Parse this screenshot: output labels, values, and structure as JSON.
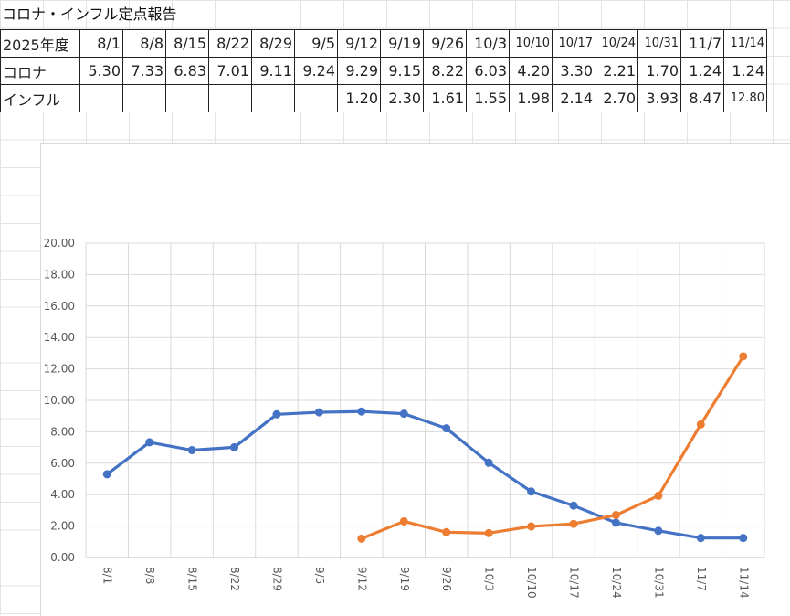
{
  "sheet": {
    "title": "コロナ・インフル定点報告"
  },
  "table": {
    "header_label": "2025年度",
    "dates": [
      "8/1",
      "8/8",
      "8/15",
      "8/22",
      "8/29",
      "9/5",
      "9/12",
      "9/19",
      "9/26",
      "10/3",
      "10/10",
      "10/17",
      "10/24",
      "10/31",
      "11/7",
      "11/14"
    ],
    "rows": [
      {
        "label": "コロナ",
        "values": [
          "5.30",
          "7.33",
          "6.83",
          "7.01",
          "9.11",
          "9.24",
          "9.29",
          "9.15",
          "8.22",
          "6.03",
          "4.20",
          "3.30",
          "2.21",
          "1.70",
          "1.24",
          "1.24"
        ]
      },
      {
        "label": "インフル",
        "values": [
          "",
          "",
          "",
          "",
          "",
          "",
          "1.20",
          "2.30",
          "1.61",
          "1.55",
          "1.98",
          "2.14",
          "2.70",
          "3.93",
          "8.47",
          "12.80"
        ]
      }
    ]
  },
  "chart_data": {
    "type": "line",
    "categories": [
      "8/1",
      "8/8",
      "8/15",
      "8/22",
      "8/29",
      "9/5",
      "9/12",
      "9/19",
      "9/26",
      "10/3",
      "10/10",
      "10/17",
      "10/24",
      "10/31",
      "11/7",
      "11/14"
    ],
    "series": [
      {
        "color": "#4472c4",
        "values": [
          5.3,
          7.33,
          6.83,
          7.01,
          9.11,
          9.24,
          9.29,
          9.15,
          8.22,
          6.03,
          4.2,
          3.3,
          2.21,
          1.7,
          1.24,
          1.24
        ]
      },
      {
        "color": "#ed7d31",
        "values": [
          null,
          null,
          null,
          null,
          null,
          null,
          1.2,
          2.3,
          1.61,
          1.55,
          1.98,
          2.14,
          2.7,
          3.93,
          8.47,
          12.8
        ]
      }
    ],
    "ylim": [
      0,
      20
    ],
    "yticks": [
      "0.00",
      "2.00",
      "4.00",
      "6.00",
      "8.00",
      "10.00",
      "12.00",
      "14.00",
      "16.00",
      "18.00",
      "20.00"
    ],
    "grid": true,
    "legend": "none",
    "title": "",
    "xlabel": "",
    "ylabel": ""
  }
}
